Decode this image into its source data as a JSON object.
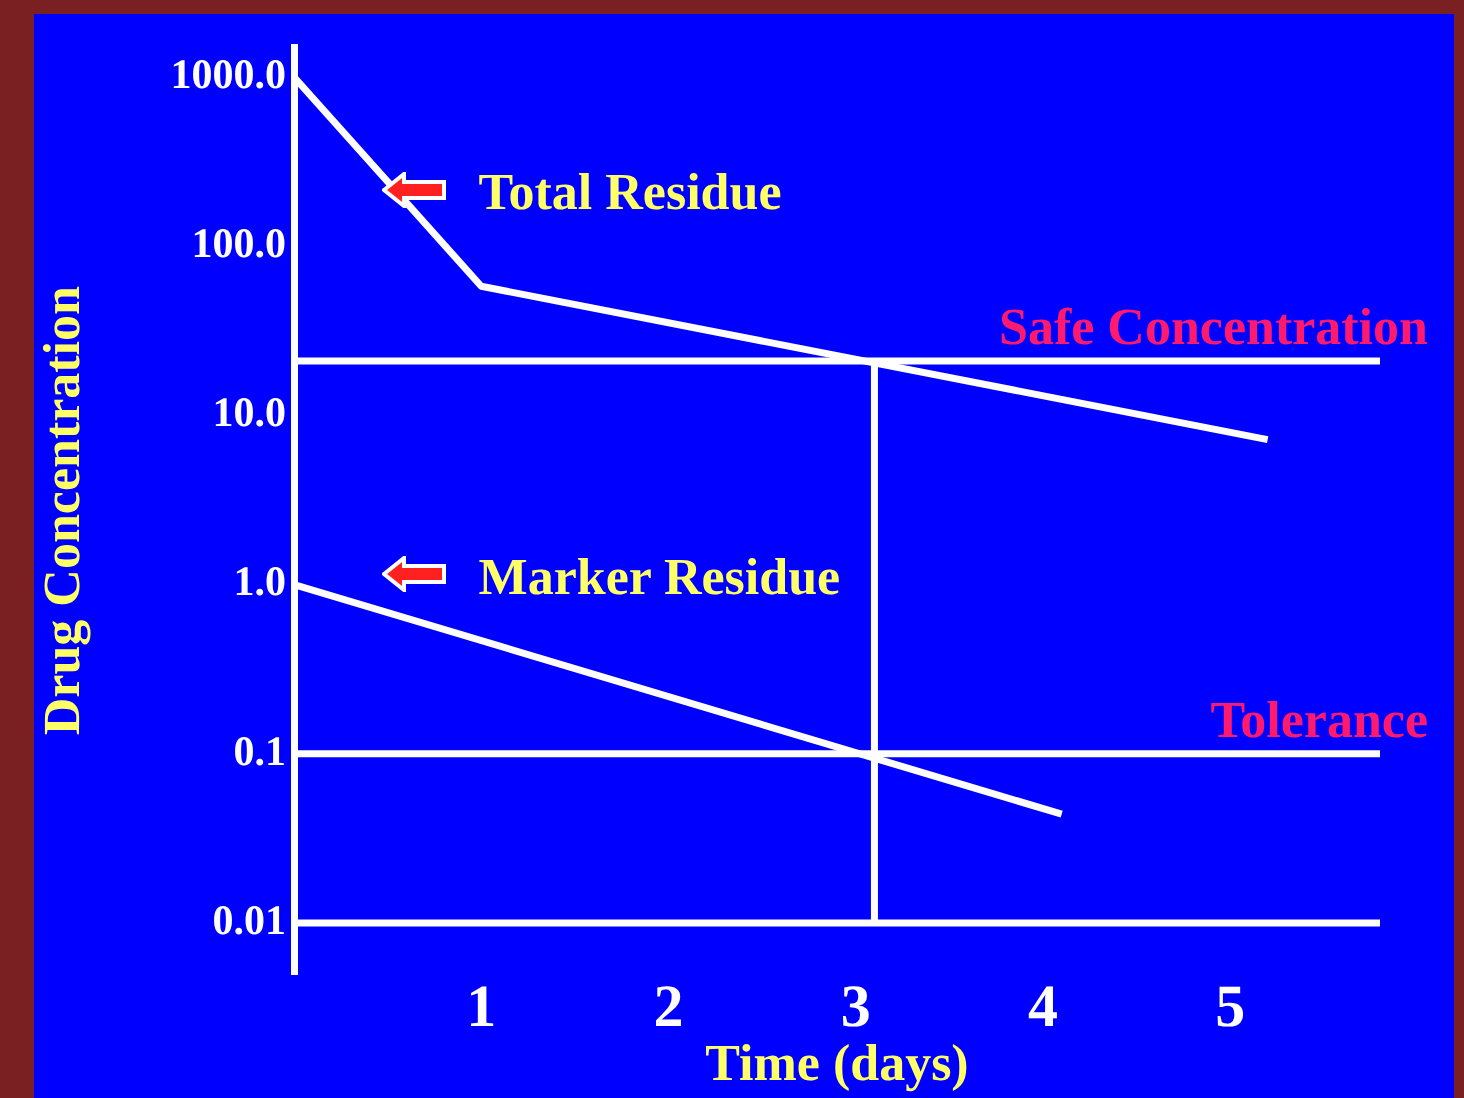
{
  "chart_data": {
    "type": "line",
    "xlabel": "Time (days)",
    "ylabel": "Drug Concentration",
    "xlim": [
      0,
      5.8
    ],
    "xticks": [
      1,
      2,
      3,
      4,
      5
    ],
    "ylim": [
      0.005,
      1500
    ],
    "yticks": [
      {
        "value": 1000,
        "label": "1000.0"
      },
      {
        "value": 100,
        "label": "100.0"
      },
      {
        "value": 10,
        "label": "10.0"
      },
      {
        "value": 1,
        "label": "1.0"
      },
      0.1,
      0.01
    ],
    "log": "y",
    "grid": false,
    "legend": false,
    "marker": "none",
    "line_style": "solid",
    "series": [
      {
        "color": "#ffffff",
        "x": [
          0,
          1,
          5.2
        ],
        "values": [
          1000,
          58,
          7.2
        ]
      },
      {
        "color": "#ffffff",
        "x": [
          0,
          4.1
        ],
        "values": [
          1.0,
          0.044
        ]
      },
      {
        "color": "#ffffff",
        "x": [
          3.1,
          3.1
        ],
        "values": [
          0.01,
          21
        ]
      }
    ],
    "ref_lines": [
      {
        "axis": "y",
        "value": 21,
        "label": "Safe Concentration",
        "color": "#ffffff"
      },
      {
        "axis": "y",
        "value": 0.1,
        "label": "Tolerance",
        "color": "#ffffff"
      },
      {
        "axis": "y",
        "value": 0.01,
        "color": "#ffffff"
      }
    ],
    "annotations": [
      "Total Residue",
      "Marker Residue"
    ]
  }
}
